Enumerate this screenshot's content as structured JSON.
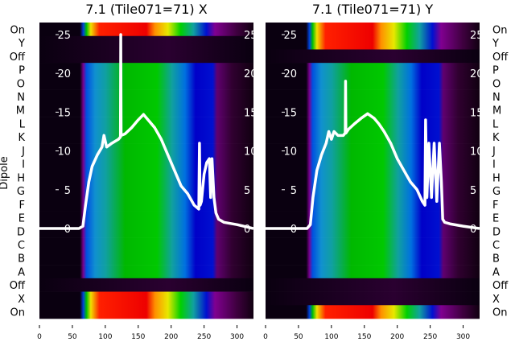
{
  "chart_data": [
    {
      "type": "heatmap",
      "title": "7.1 (Tile071=71) X",
      "ylabel": "Dipole",
      "row_labels": [
        "On",
        "Y",
        "Off",
        "P",
        "O",
        "N",
        "M",
        "L",
        "K",
        "J",
        "I",
        "H",
        "G",
        "F",
        "E",
        "D",
        "C",
        "B",
        "A",
        "Off",
        "X",
        "On"
      ],
      "row_types": [
        "hot",
        "dark",
        "dark",
        "spec",
        "spec",
        "spec",
        "spec",
        "spec",
        "spec",
        "spec",
        "spec",
        "spec",
        "spec",
        "spec",
        "spec",
        "spec",
        "spec",
        "spec",
        "spec",
        "dark",
        "hot",
        "hot"
      ],
      "xlim": [
        0,
        325
      ],
      "xticks": [
        0,
        50,
        100,
        150,
        200,
        250,
        300
      ],
      "overlay_yticks": [
        0,
        5,
        10,
        15,
        20,
        25
      ],
      "overlay_ylim": [
        0,
        25
      ],
      "line": {
        "x": [
          0,
          60,
          66,
          70,
          75,
          80,
          88,
          95,
          98,
          102,
          110,
          120,
          123,
          123.5,
          124,
          130,
          140,
          150,
          158,
          165,
          175,
          185,
          195,
          205,
          215,
          225,
          235,
          242,
          243,
          244,
          246,
          250,
          254,
          258,
          260,
          262,
          265,
          268,
          272,
          280,
          300,
          325
        ],
        "y": [
          0,
          0,
          0.3,
          3,
          6,
          8,
          9.5,
          10.5,
          12,
          10.5,
          11,
          11.5,
          11.8,
          25,
          12,
          12.2,
          13,
          14,
          14.7,
          14,
          13,
          11.5,
          9.5,
          7.5,
          5.5,
          4.5,
          3,
          2.5,
          11,
          3,
          3.5,
          7,
          8.5,
          9,
          4,
          9,
          4,
          2,
          1.2,
          0.8,
          0.5,
          0
        ]
      }
    },
    {
      "type": "heatmap",
      "title": "7.1 (Tile071=71) Y",
      "row_labels": [
        "On",
        "Y",
        "Off",
        "P",
        "O",
        "N",
        "M",
        "L",
        "K",
        "J",
        "I",
        "H",
        "G",
        "F",
        "E",
        "D",
        "C",
        "B",
        "A",
        "Off",
        "X",
        "On"
      ],
      "row_types": [
        "hot",
        "hot",
        "dark",
        "spec",
        "spec",
        "spec",
        "spec",
        "spec",
        "spec",
        "spec",
        "spec",
        "spec",
        "spec",
        "spec",
        "spec",
        "spec",
        "spec",
        "spec",
        "spec",
        "dark",
        "dark",
        "hot"
      ],
      "xlim": [
        0,
        325
      ],
      "xticks": [
        0,
        50,
        100,
        150,
        200,
        250,
        300
      ],
      "overlay_yticks": [
        0,
        5,
        10,
        15,
        20,
        25
      ],
      "overlay_ylim": [
        0,
        25
      ],
      "line": {
        "x": [
          0,
          63,
          68,
          72,
          78,
          85,
          92,
          96,
          100,
          104,
          110,
          118,
          121,
          121.5,
          122,
          126,
          135,
          145,
          155,
          165,
          172,
          180,
          190,
          200,
          210,
          220,
          230,
          238,
          242,
          243,
          245,
          248,
          252,
          256,
          260,
          264,
          267,
          269,
          272,
          280,
          300,
          325
        ],
        "y": [
          0,
          0,
          0.5,
          4,
          7.5,
          9.5,
          11,
          12.5,
          11.5,
          12.5,
          12,
          12,
          12.3,
          19,
          12.3,
          12.8,
          13.5,
          14.2,
          14.8,
          14.2,
          13.5,
          12.5,
          11,
          9,
          7.5,
          6,
          5,
          3.5,
          3,
          14,
          4,
          11,
          4,
          11,
          3.5,
          11,
          6,
          1.2,
          0.8,
          0.6,
          0.3,
          0
        ]
      }
    }
  ]
}
